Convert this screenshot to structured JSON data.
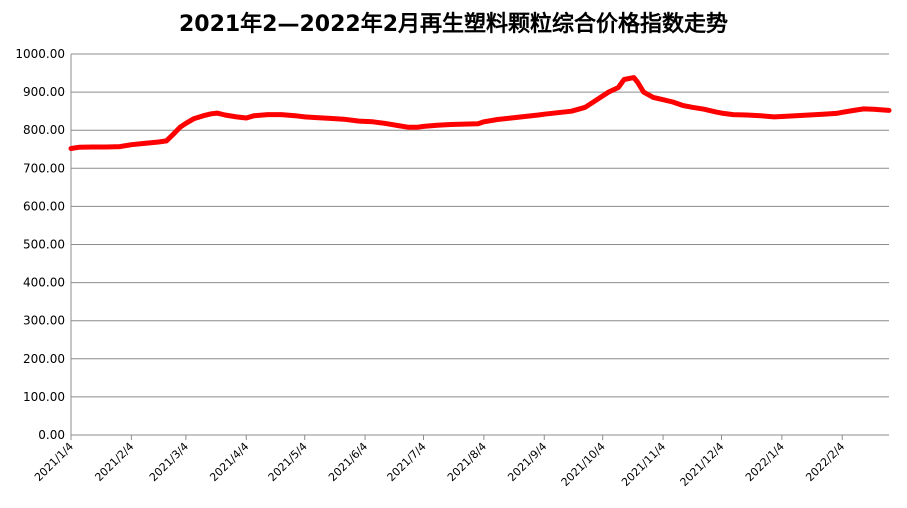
{
  "chart_data": {
    "type": "line",
    "title": "2021年2—2022年2月再生塑料颗粒综合价格指数走势",
    "xlabel": "",
    "ylabel": "",
    "ylim": [
      0,
      1000
    ],
    "yticks": [
      "0.00",
      "100.00",
      "200.00",
      "300.00",
      "400.00",
      "500.00",
      "600.00",
      "700.00",
      "800.00",
      "900.00",
      "1000.00"
    ],
    "xlim": [
      "2021-01-04",
      "2022-02-28"
    ],
    "xticks": [
      {
        "date": "2021-01-04",
        "label": "2021/1/4"
      },
      {
        "date": "2021-02-04",
        "label": "2021/2/4"
      },
      {
        "date": "2021-03-04",
        "label": "2021/3/4"
      },
      {
        "date": "2021-04-04",
        "label": "2021/4/4"
      },
      {
        "date": "2021-05-04",
        "label": "2021/5/4"
      },
      {
        "date": "2021-06-04",
        "label": "2021/6/4"
      },
      {
        "date": "2021-07-04",
        "label": "2021/7/4"
      },
      {
        "date": "2021-08-04",
        "label": "2021/8/4"
      },
      {
        "date": "2021-09-04",
        "label": "2021/9/4"
      },
      {
        "date": "2021-10-04",
        "label": "2021/10/4"
      },
      {
        "date": "2021-11-04",
        "label": "2021/11/4"
      },
      {
        "date": "2021-12-04",
        "label": "2021/12/4"
      },
      {
        "date": "2022-01-04",
        "label": "2022/1/4"
      },
      {
        "date": "2022-02-04",
        "label": "2022/2/4"
      }
    ],
    "grid": true,
    "line_color": "#ff0000",
    "series": [
      {
        "points": [
          [
            "2021-01-04",
            752
          ],
          [
            "2021-01-08",
            755
          ],
          [
            "2021-01-15",
            756
          ],
          [
            "2021-01-22",
            756
          ],
          [
            "2021-01-29",
            757
          ],
          [
            "2021-02-04",
            762
          ],
          [
            "2021-02-10",
            765
          ],
          [
            "2021-02-18",
            769
          ],
          [
            "2021-02-22",
            772
          ],
          [
            "2021-02-25",
            787
          ],
          [
            "2021-03-01",
            808
          ],
          [
            "2021-03-04",
            818
          ],
          [
            "2021-03-08",
            830
          ],
          [
            "2021-03-13",
            838
          ],
          [
            "2021-03-17",
            843
          ],
          [
            "2021-03-20",
            845
          ],
          [
            "2021-03-24",
            840
          ],
          [
            "2021-03-30",
            835
          ],
          [
            "2021-04-04",
            832
          ],
          [
            "2021-04-08",
            838
          ],
          [
            "2021-04-15",
            841
          ],
          [
            "2021-04-22",
            841
          ],
          [
            "2021-04-29",
            838
          ],
          [
            "2021-05-04",
            835
          ],
          [
            "2021-05-10",
            833
          ],
          [
            "2021-05-17",
            831
          ],
          [
            "2021-05-24",
            829
          ],
          [
            "2021-06-01",
            824
          ],
          [
            "2021-06-08",
            822
          ],
          [
            "2021-06-14",
            818
          ],
          [
            "2021-06-21",
            812
          ],
          [
            "2021-06-26",
            808
          ],
          [
            "2021-07-01",
            808
          ],
          [
            "2021-07-04",
            810
          ],
          [
            "2021-07-11",
            813
          ],
          [
            "2021-07-18",
            815
          ],
          [
            "2021-07-25",
            816
          ],
          [
            "2021-08-01",
            817
          ],
          [
            "2021-08-04",
            822
          ],
          [
            "2021-08-11",
            828
          ],
          [
            "2021-08-18",
            832
          ],
          [
            "2021-08-25",
            836
          ],
          [
            "2021-09-01",
            840
          ],
          [
            "2021-09-04",
            842
          ],
          [
            "2021-09-11",
            846
          ],
          [
            "2021-09-18",
            850
          ],
          [
            "2021-09-25",
            860
          ],
          [
            "2021-10-01",
            880
          ],
          [
            "2021-10-07",
            900
          ],
          [
            "2021-10-12",
            912
          ],
          [
            "2021-10-15",
            933
          ],
          [
            "2021-10-20",
            938
          ],
          [
            "2021-10-22",
            925
          ],
          [
            "2021-10-25",
            900
          ],
          [
            "2021-10-30",
            886
          ],
          [
            "2021-11-04",
            880
          ],
          [
            "2021-11-09",
            874
          ],
          [
            "2021-11-14",
            865
          ],
          [
            "2021-11-19",
            860
          ],
          [
            "2021-11-25",
            855
          ],
          [
            "2021-12-01",
            848
          ],
          [
            "2021-12-04",
            845
          ],
          [
            "2021-12-10",
            841
          ],
          [
            "2021-12-17",
            840
          ],
          [
            "2021-12-24",
            838
          ],
          [
            "2021-12-31",
            835
          ],
          [
            "2022-01-04",
            836
          ],
          [
            "2022-01-11",
            838
          ],
          [
            "2022-01-18",
            840
          ],
          [
            "2022-01-25",
            842
          ],
          [
            "2022-02-01",
            844
          ],
          [
            "2022-02-04",
            847
          ],
          [
            "2022-02-10",
            852
          ],
          [
            "2022-02-15",
            856
          ],
          [
            "2022-02-20",
            855
          ],
          [
            "2022-02-28",
            852
          ]
        ]
      }
    ]
  }
}
